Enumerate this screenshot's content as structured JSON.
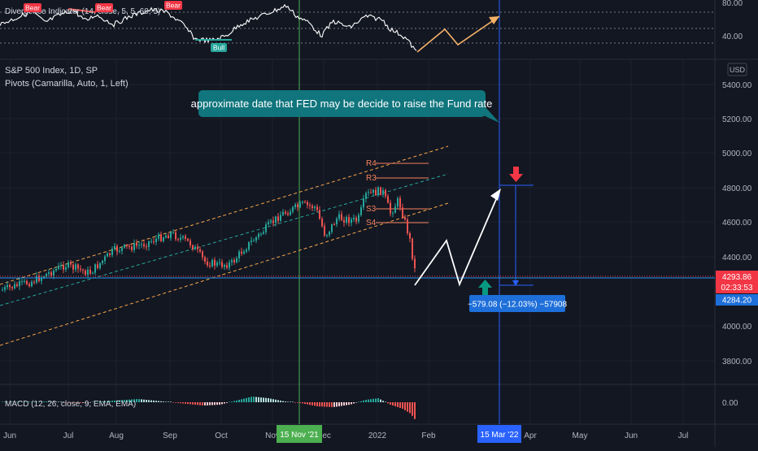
{
  "colors": {
    "background": "#131722",
    "grid": "#1e222d",
    "axis_text": "#b2b5be",
    "up": "#26a69a",
    "down": "#ef5350",
    "channel": "#f7a74a",
    "midline": "#26a69a",
    "pivot": "#f7825e",
    "vline_green": "#4caf50",
    "vline_blue": "#2962ff",
    "callout_bg": "#10757d",
    "measure_bg": "#1e6fd9",
    "price_label": "#f23645",
    "price_line": "#2196f3"
  },
  "oscillator": {
    "title": "Divergence Indicator (14, close, 5, 5, 60, 5)",
    "scale_ticks": [
      "80.00",
      "40.00"
    ],
    "labels": [
      {
        "text": "Bear",
        "type": "bear"
      },
      {
        "text": "Bear",
        "type": "bear"
      },
      {
        "text": "Bear",
        "type": "bear"
      },
      {
        "text": "Bull",
        "type": "bull"
      }
    ]
  },
  "main": {
    "symbol_title": "S&P 500 Index, 1D, SP",
    "indicator_title": "Pivots (Camarilla, Auto, 1, Left)",
    "currency": "USD",
    "price_ticks": [
      "5400.00",
      "5200.00",
      "5000.00",
      "4800.00",
      "4600.00",
      "4400.00",
      "4000.00",
      "3800.00"
    ],
    "pivot_labels": [
      "R4",
      "R3",
      "S3",
      "S4"
    ],
    "current_price": "4293.86",
    "countdown": "02:33:53",
    "level_price": "4284.20",
    "annotation": "approximate date that FED may be decide to raise the Fund rate",
    "measure": "−579.08 (−12.03%) −57908"
  },
  "macd": {
    "title": "MACD (12, 26, close, 9, EMA, EMA)",
    "scale_tick": "0.00"
  },
  "time_axis": {
    "labels": [
      "Jun",
      "Jul",
      "Aug",
      "Sep",
      "Oct",
      "Nov",
      "Dec",
      "2022",
      "Feb",
      "Apr",
      "May",
      "Jun",
      "Jul"
    ],
    "highlight_green": "15 Nov '21",
    "highlight_blue": "15 Mar '22"
  }
}
